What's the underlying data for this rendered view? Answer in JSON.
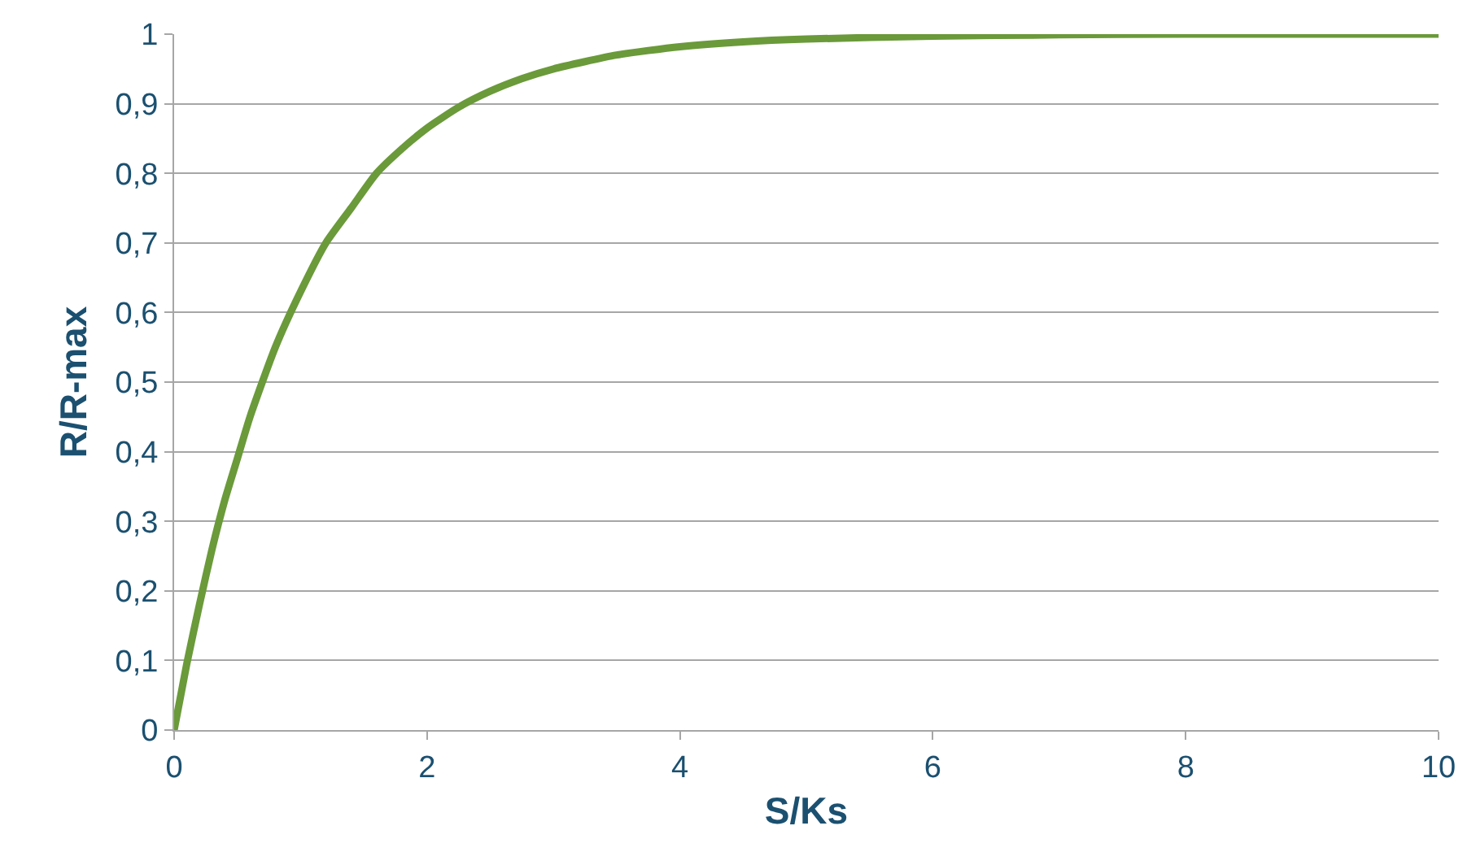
{
  "chart_data": {
    "type": "line",
    "xlabel": "S/Ks",
    "ylabel": "R/R-max",
    "x": [
      0,
      0.1,
      0.2,
      0.3,
      0.4,
      0.5,
      0.6,
      0.8,
      1.0,
      1.2,
      1.4,
      1.6,
      1.8,
      2.0,
      2.25,
      2.5,
      2.75,
      3,
      3.5,
      4,
      4.5,
      5,
      6,
      7,
      8,
      9,
      10
    ],
    "series": [
      {
        "color": "#6a9a3a",
        "values": [
          0,
          0.095,
          0.18,
          0.26,
          0.33,
          0.39,
          0.45,
          0.55,
          0.63,
          0.7,
          0.75,
          0.8,
          0.835,
          0.865,
          0.895,
          0.918,
          0.936,
          0.95,
          0.97,
          0.982,
          0.989,
          0.993,
          0.997,
          0.999,
          1,
          1,
          1
        ]
      }
    ],
    "xlim": [
      0,
      10
    ],
    "xticks": [
      0,
      2,
      4,
      6,
      8,
      10
    ],
    "ylim": [
      0,
      1
    ],
    "yticks": [
      0,
      {
        "value": 0.1,
        "label": "0,1"
      },
      {
        "value": 0.2,
        "label": "0,2"
      },
      {
        "value": 0.3,
        "label": "0,3"
      },
      {
        "value": 0.4,
        "label": "0,4"
      },
      {
        "value": 0.5,
        "label": "0,5"
      },
      {
        "value": 0.6,
        "label": "0,6"
      },
      {
        "value": 0.7,
        "label": "0,7"
      },
      {
        "value": 0.8,
        "label": "0,8"
      },
      {
        "value": 0.9,
        "label": "0,9"
      },
      1
    ],
    "grid": "y",
    "marker": "none",
    "line_style": "solid"
  }
}
